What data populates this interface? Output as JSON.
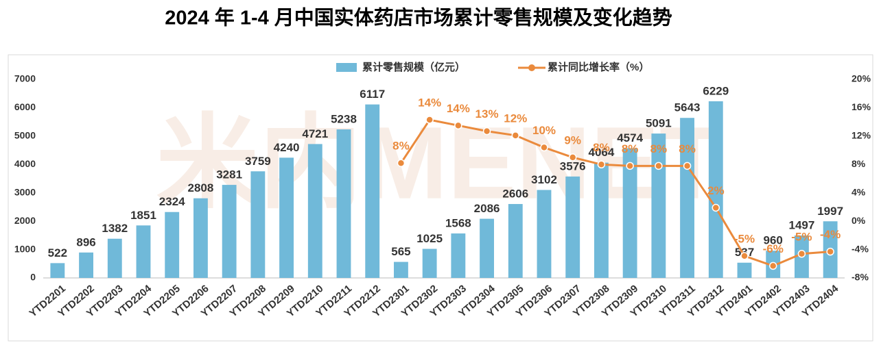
{
  "chart_data": {
    "type": "bar-line",
    "title": "2024 年 1-4 月中国实体药店市场累计零售规模及变化趋势",
    "watermark": "米内MENET",
    "categories": [
      "YTD2201",
      "YTD2202",
      "YTD2203",
      "YTD2204",
      "YTD2205",
      "YTD2206",
      "YTD2207",
      "YTD2208",
      "YTD2209",
      "YTD2210",
      "YTD2211",
      "YTD2212",
      "YTD2301",
      "YTD2302",
      "YTD2303",
      "YTD2304",
      "YTD2305",
      "YTD2306",
      "YTD2307",
      "YTD2308",
      "YTD2309",
      "YTD2310",
      "YTD2311",
      "YTD2312",
      "YTD2401",
      "YTD2402",
      "YTD2403",
      "YTD2404"
    ],
    "series": [
      {
        "name": "累计零售规模（亿元）",
        "type": "bar",
        "color": "#70b9d9",
        "values": [
          522,
          896,
          1382,
          1851,
          2324,
          2808,
          3281,
          3759,
          4240,
          4721,
          5238,
          6117,
          565,
          1025,
          1568,
          2086,
          2606,
          3102,
          3576,
          4064,
          4574,
          5091,
          5643,
          6229,
          537,
          960,
          1497,
          1997
        ]
      },
      {
        "name": "累计同比增长率（%）",
        "type": "line",
        "axis": "y2",
        "color": "#ea8a3c",
        "values": [
          null,
          null,
          null,
          null,
          null,
          null,
          null,
          null,
          null,
          null,
          null,
          null,
          8.2,
          14.3,
          13.5,
          12.7,
          12.1,
          10.4,
          9.0,
          8.0,
          7.8,
          7.8,
          7.8,
          1.9,
          -4.9,
          -6.3,
          -4.6,
          -4.3
        ],
        "value_labels": [
          null,
          null,
          null,
          null,
          null,
          null,
          null,
          null,
          null,
          null,
          null,
          null,
          "8%",
          "14%",
          "14%",
          "13%",
          "12%",
          "10%",
          "9%",
          "8%",
          "8%",
          "8%",
          "8%",
          "2%",
          "-5%",
          "-6%",
          "-5%",
          "-4%"
        ]
      }
    ],
    "ylim": [
      0,
      7000
    ],
    "yticks": [
      0,
      1000,
      2000,
      3000,
      4000,
      5000,
      6000,
      7000
    ],
    "y2lim": [
      -8,
      20
    ],
    "y2ticks": [
      {
        "value": -8,
        "label": "-8%"
      },
      {
        "value": -4,
        "label": "-4%"
      },
      {
        "value": 0,
        "label": "0%"
      },
      {
        "value": 4,
        "label": "4%"
      },
      {
        "value": 8,
        "label": "8%"
      },
      {
        "value": 12,
        "label": "12%"
      },
      {
        "value": 16,
        "label": "16%"
      },
      {
        "value": 20,
        "label": "20%"
      }
    ],
    "grid": false,
    "legend": "top"
  }
}
